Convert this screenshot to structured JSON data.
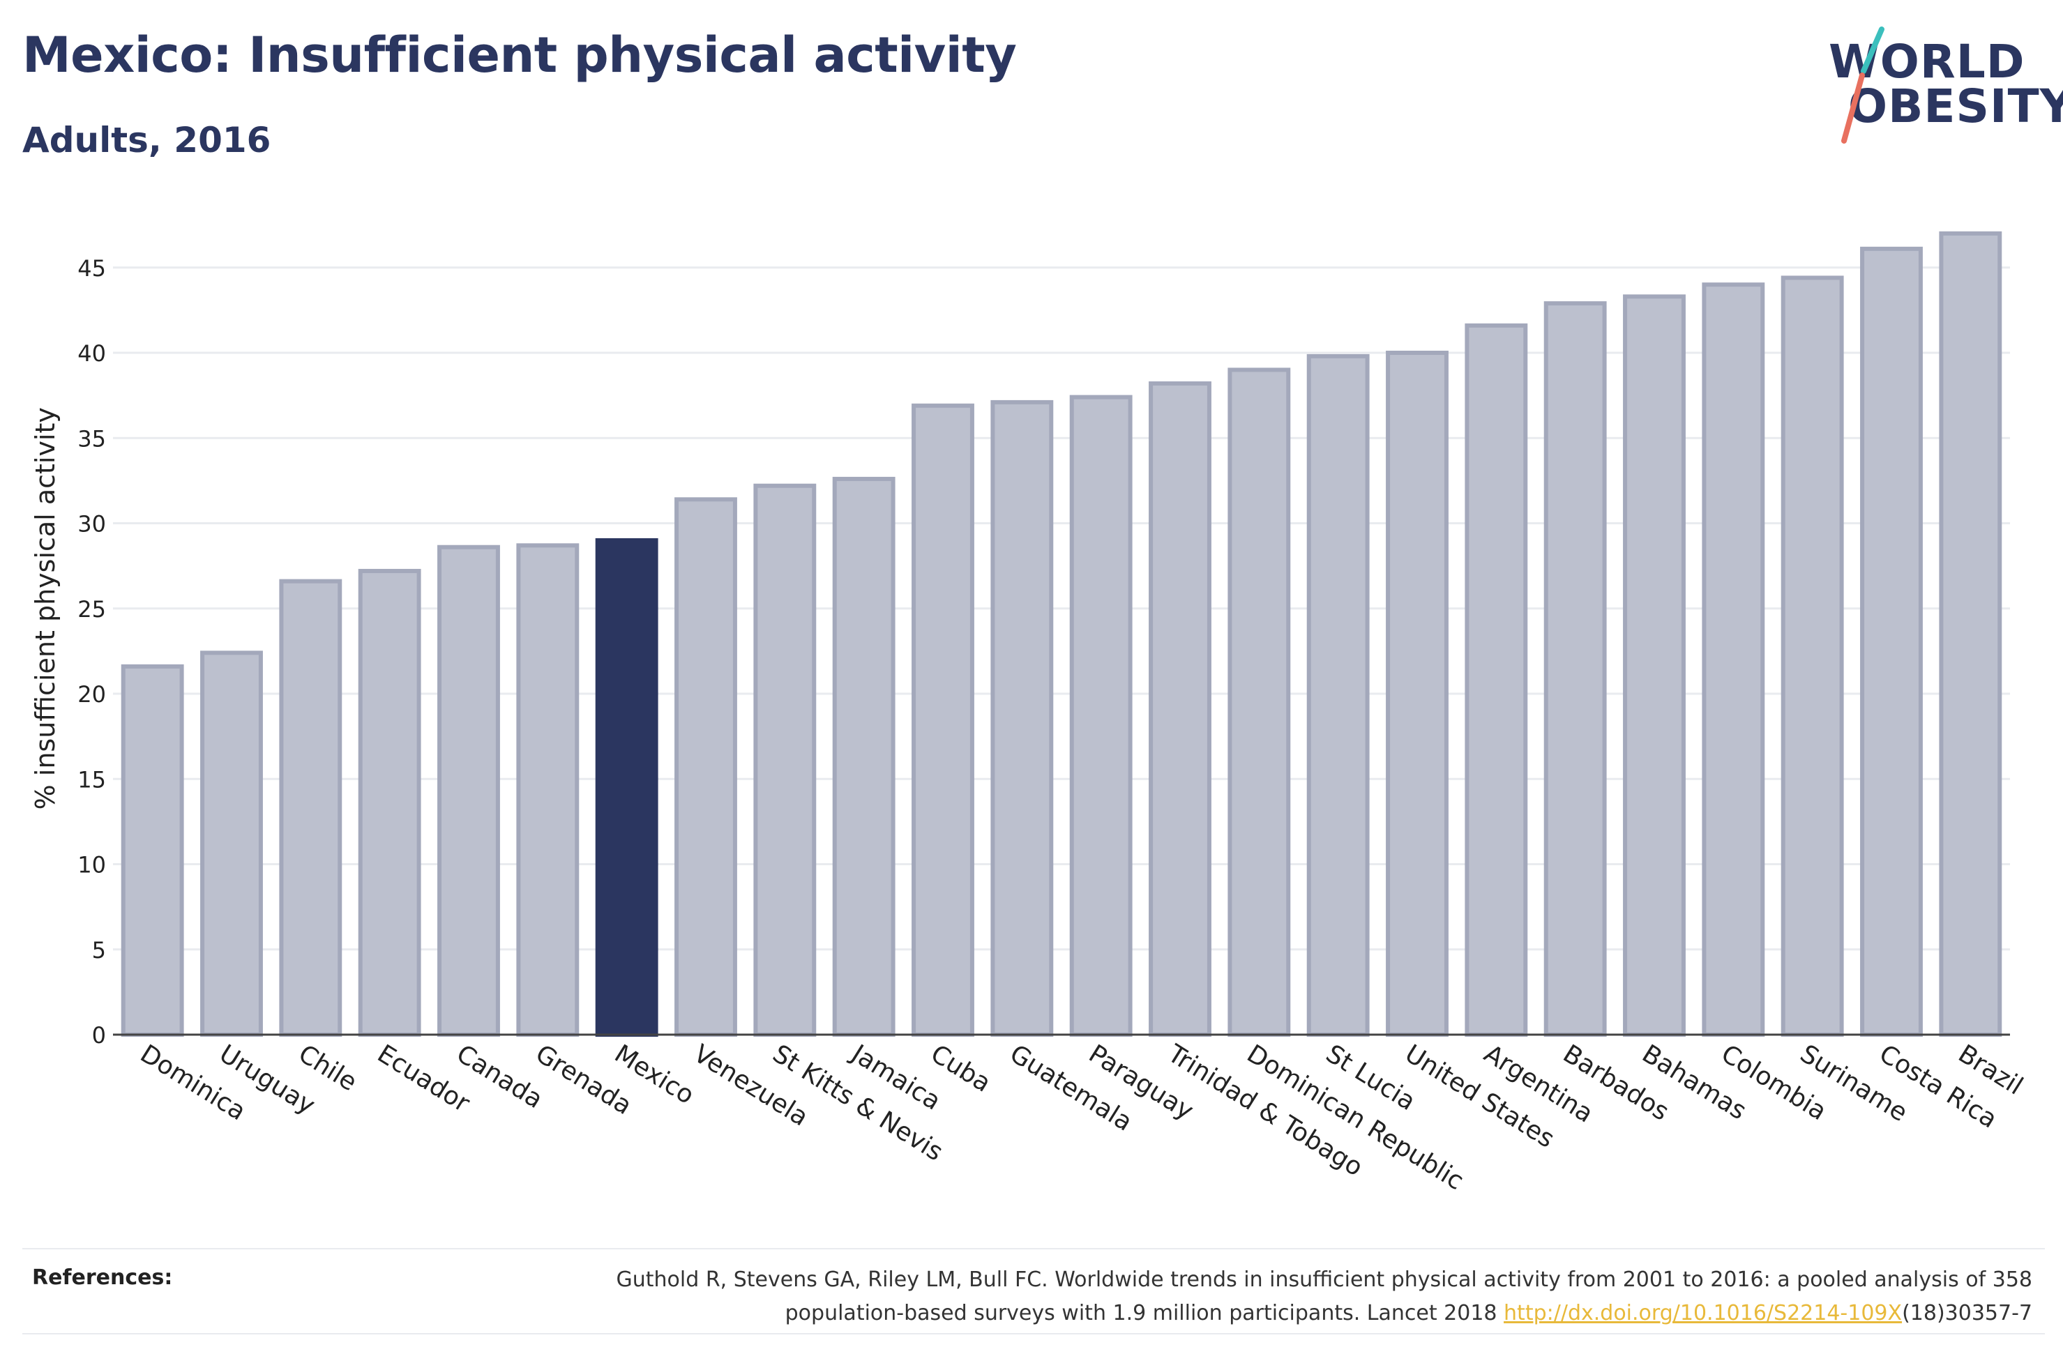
{
  "header": {
    "title": "Mexico: Insufficient physical activity",
    "subtitle": "Adults, 2016"
  },
  "logo": {
    "line1": "WORLD",
    "line2": "OBESITY"
  },
  "colors": {
    "highlight": "#2b3660",
    "bar_fill": "#bcc0ce",
    "bar_stroke": "#a3a8bb",
    "link": "#e8b93a"
  },
  "chart_data": {
    "type": "bar",
    "title": "Mexico: Insufficient physical activity",
    "subtitle": "Adults, 2016",
    "ylabel": "% insufficient physical activity",
    "xlabel": "",
    "ylim": [
      0,
      48
    ],
    "yticks": [
      0,
      5,
      10,
      15,
      20,
      25,
      30,
      35,
      40,
      45
    ],
    "grid": true,
    "highlight": "Mexico",
    "categories": [
      "Dominica",
      "Uruguay",
      "Chile",
      "Ecuador",
      "Canada",
      "Grenada",
      "Mexico",
      "Venezuela",
      "St Kitts & Nevis",
      "Jamaica",
      "Cuba",
      "Guatemala",
      "Paraguay",
      "Trinidad & Tobago",
      "Dominican Republic",
      "St Lucia",
      "United States",
      "Argentina",
      "Barbados",
      "Bahamas",
      "Colombia",
      "Suriname",
      "Costa Rica",
      "Brazil"
    ],
    "values": [
      21.6,
      22.4,
      26.6,
      27.2,
      28.6,
      28.7,
      29.0,
      31.4,
      32.2,
      32.6,
      36.9,
      37.1,
      37.4,
      38.2,
      39.0,
      39.8,
      40.0,
      41.6,
      42.9,
      43.3,
      44.0,
      44.4,
      46.1,
      47.0
    ]
  },
  "references": {
    "label": "References:",
    "text_line1": "Guthold R, Stevens GA, Riley LM, Bull FC. Worldwide trends in insufficient physical activity from 2001 to 2016: a pooled analysis of 358",
    "text_line2_pre": "population-based surveys with 1.9 million participants. Lancet 2018 ",
    "link": "http://dx.doi.org/10.1016/S2214-109X",
    "text_line2_post": "(18)30357-7"
  }
}
